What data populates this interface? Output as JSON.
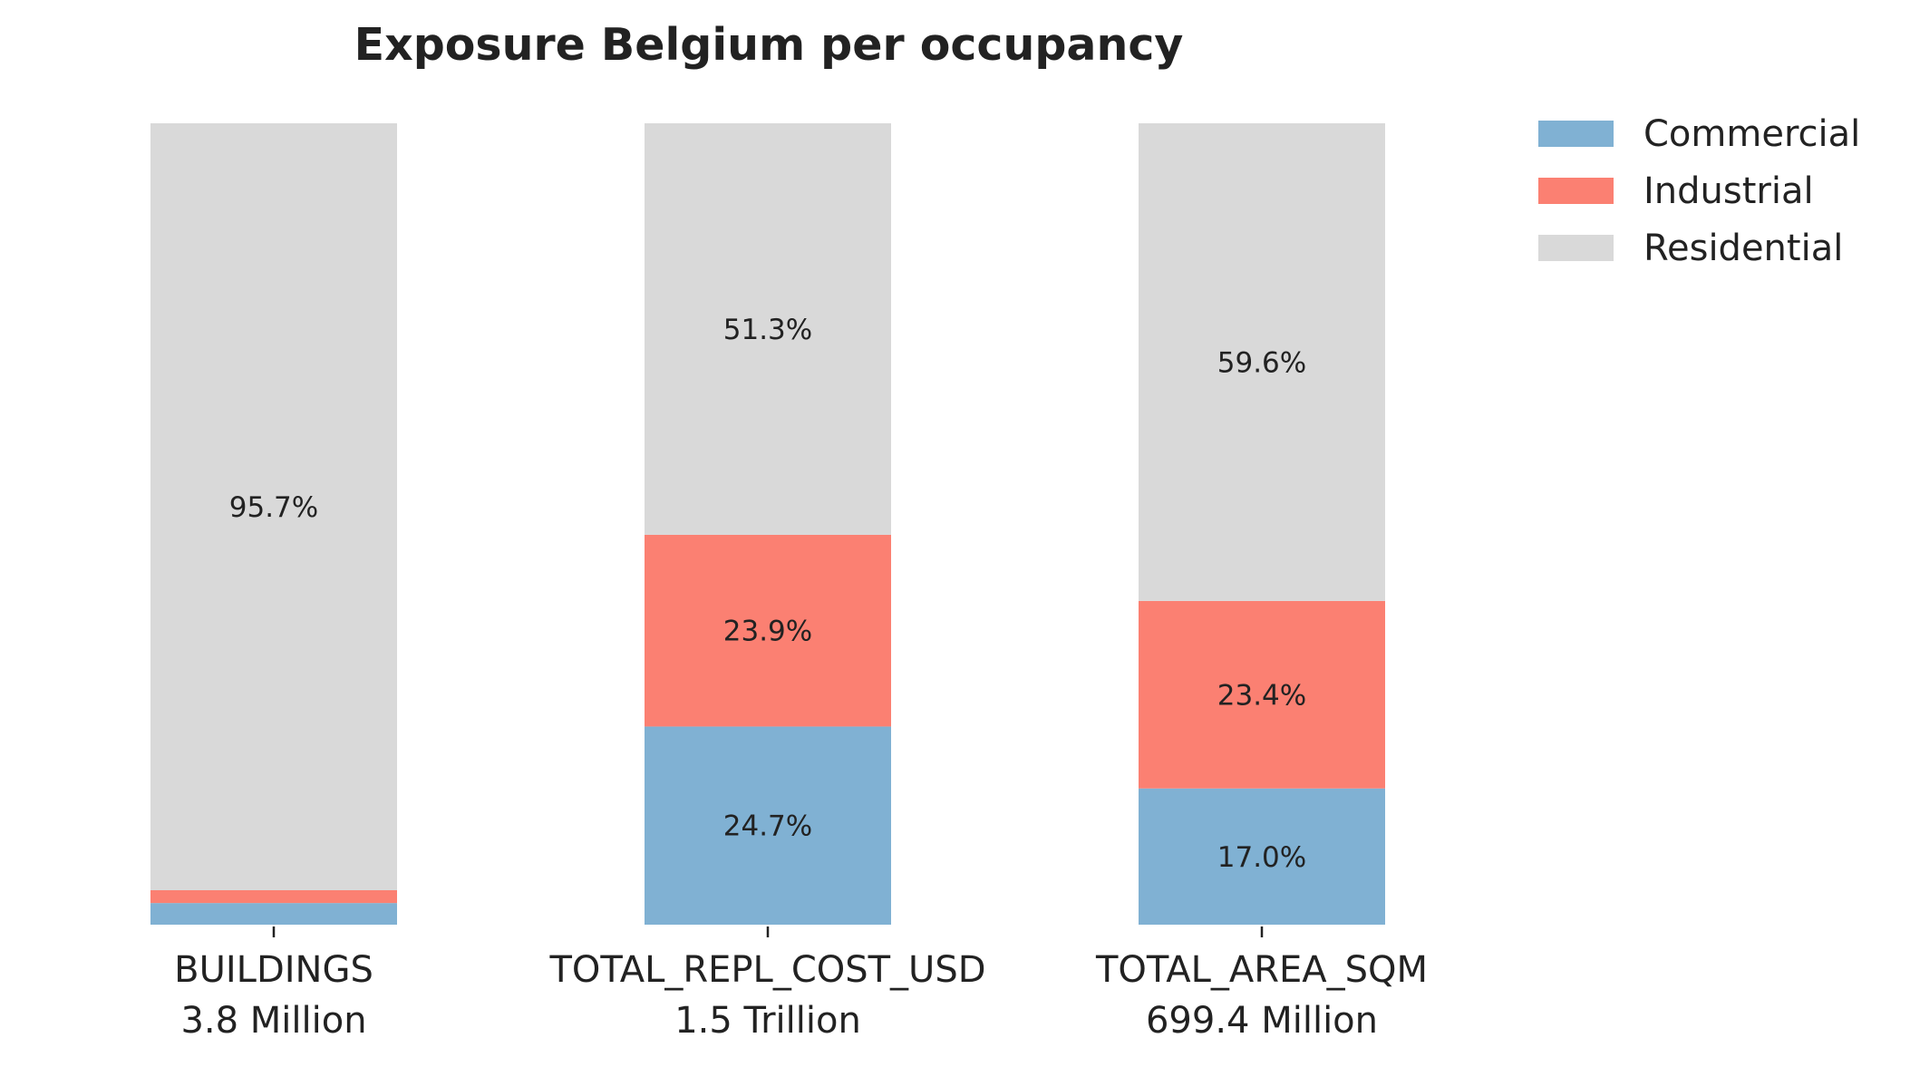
{
  "chart_data": {
    "type": "bar",
    "stacked": true,
    "normalized": true,
    "title": "Exposure Belgium per occupancy",
    "xlabel": "",
    "ylabel": "",
    "ylim": [
      0,
      100
    ],
    "grid": false,
    "legend_position": "top-right",
    "categories": [
      {
        "name": "BUILDINGS",
        "total": "3.8 Million"
      },
      {
        "name": "TOTAL_REPL_COST_USD",
        "total": "1.5 Trillion"
      },
      {
        "name": "TOTAL_AREA_SQM",
        "total": "699.4 Million"
      }
    ],
    "series": [
      {
        "name": "Commercial",
        "color": "#80b1d3",
        "values": [
          2.7,
          24.7,
          17.0
        ],
        "labels": [
          "",
          "24.7%",
          "17.0%"
        ]
      },
      {
        "name": "Industrial",
        "color": "#fb8072",
        "values": [
          1.6,
          23.9,
          23.4
        ],
        "labels": [
          "",
          "23.9%",
          "23.4%"
        ]
      },
      {
        "name": "Residential",
        "color": "#d9d9d9",
        "values": [
          95.7,
          51.3,
          59.6
        ],
        "labels": [
          "95.7%",
          "51.3%",
          "59.6%"
        ]
      }
    ]
  }
}
